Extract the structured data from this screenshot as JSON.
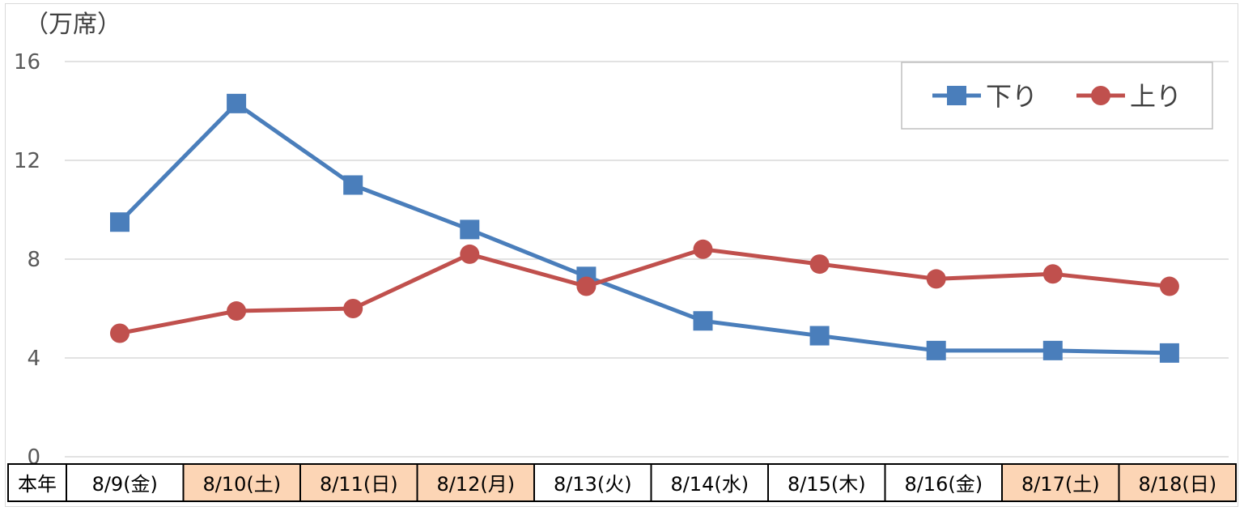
{
  "chart_data": {
    "type": "line",
    "unit_label": "（万席）",
    "row_header": "本年",
    "categories": [
      "8/9(金)",
      "8/10(土)",
      "8/11(日)",
      "8/12(月)",
      "8/13(火)",
      "8/14(水)",
      "8/15(木)",
      "8/16(金)",
      "8/17(土)",
      "8/18(日)"
    ],
    "highlighted_categories": [
      "8/10(土)",
      "8/11(日)",
      "8/12(月)",
      "8/17(土)",
      "8/18(日)"
    ],
    "highlight_color": "#fcd5b5",
    "y_ticks": [
      "0",
      "4",
      "8",
      "12",
      "16"
    ],
    "ylim": [
      0,
      16
    ],
    "grid": true,
    "legend_position": "top-right",
    "series": [
      {
        "name": "下り",
        "color": "#4a7ebb",
        "marker": "square",
        "values": [
          9.5,
          14.3,
          11.0,
          9.2,
          7.3,
          5.5,
          4.9,
          4.3,
          4.3,
          4.2
        ]
      },
      {
        "name": "上り",
        "color": "#c0504d",
        "marker": "circle",
        "values": [
          5.0,
          5.9,
          6.0,
          8.2,
          6.9,
          8.4,
          7.8,
          7.2,
          7.4,
          6.9
        ]
      }
    ]
  }
}
